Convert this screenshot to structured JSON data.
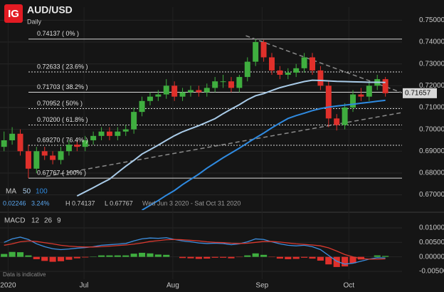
{
  "chart_data": [
    {
      "type": "candlestick",
      "logo": "IG",
      "title": "AUD/USD",
      "subtitle": "Daily",
      "xlim": [
        -0.5,
        49.05
      ],
      "ylim": [
        0.664,
        0.756
      ],
      "xticks": [
        {
          "value": 0.5,
          "label": "2020"
        },
        {
          "value": 9.85,
          "label": "Jul"
        },
        {
          "value": 20.8,
          "label": "Aug"
        },
        {
          "value": 31.8,
          "label": "Sep"
        },
        {
          "value": 42.5,
          "label": "Oct"
        }
      ],
      "yticks": [
        {
          "value": 0.67,
          "label": "0.67000"
        },
        {
          "value": 0.68,
          "label": "0.68000"
        },
        {
          "value": 0.69,
          "label": "0.69000"
        },
        {
          "value": 0.7,
          "label": "0.70000"
        },
        {
          "value": 0.71,
          "label": "0.71000"
        },
        {
          "value": 0.72,
          "label": "0.72000"
        },
        {
          "value": 0.73,
          "label": "0.73000"
        },
        {
          "value": 0.74,
          "label": "0.74000"
        },
        {
          "value": 0.75,
          "label": "0.75000"
        }
      ],
      "up_color": "#3fae3f",
      "down_color": "#e0302b",
      "open": [
        0.692,
        0.695,
        0.698,
        0.69,
        0.682,
        0.69,
        0.688,
        0.686,
        0.69,
        0.693,
        0.692,
        0.695,
        0.697,
        0.699,
        0.697,
        0.699,
        0.7,
        0.708,
        0.713,
        0.715,
        0.716,
        0.72,
        0.715,
        0.717,
        0.718,
        0.717,
        0.719,
        0.722,
        0.722,
        0.719,
        0.724,
        0.731,
        0.74,
        0.733,
        0.727,
        0.725,
        0.726,
        0.728,
        0.733,
        0.727,
        0.72,
        0.705,
        0.702,
        0.71,
        0.716,
        0.715,
        0.72,
        0.723
      ],
      "high": [
        0.699,
        0.701,
        0.7,
        0.693,
        0.692,
        0.692,
        0.69,
        0.692,
        0.695,
        0.695,
        0.697,
        0.699,
        0.701,
        0.701,
        0.701,
        0.702,
        0.71,
        0.715,
        0.717,
        0.718,
        0.723,
        0.722,
        0.719,
        0.72,
        0.72,
        0.721,
        0.724,
        0.725,
        0.724,
        0.725,
        0.733,
        0.74137,
        0.741,
        0.735,
        0.729,
        0.728,
        0.73,
        0.735,
        0.735,
        0.729,
        0.722,
        0.707,
        0.712,
        0.718,
        0.719,
        0.722,
        0.725,
        0.724
      ],
      "low": [
        0.69,
        0.693,
        0.688,
        0.67767,
        0.68,
        0.686,
        0.684,
        0.684,
        0.688,
        0.69,
        0.69,
        0.693,
        0.695,
        0.695,
        0.695,
        0.697,
        0.698,
        0.706,
        0.711,
        0.713,
        0.714,
        0.713,
        0.713,
        0.715,
        0.715,
        0.715,
        0.717,
        0.719,
        0.717,
        0.717,
        0.722,
        0.729,
        0.731,
        0.725,
        0.723,
        0.723,
        0.724,
        0.726,
        0.725,
        0.718,
        0.701,
        0.6995,
        0.7,
        0.708,
        0.713,
        0.713,
        0.718,
        0.715
      ],
      "close": [
        0.695,
        0.698,
        0.69,
        0.682,
        0.69,
        0.688,
        0.686,
        0.69,
        0.693,
        0.692,
        0.695,
        0.697,
        0.699,
        0.697,
        0.699,
        0.7,
        0.708,
        0.713,
        0.715,
        0.716,
        0.72,
        0.715,
        0.717,
        0.718,
        0.717,
        0.719,
        0.722,
        0.722,
        0.719,
        0.724,
        0.731,
        0.74,
        0.733,
        0.727,
        0.725,
        0.726,
        0.728,
        0.733,
        0.727,
        0.72,
        0.705,
        0.702,
        0.71,
        0.716,
        0.715,
        0.72,
        0.723,
        0.71657
      ],
      "legend_title": "MA",
      "series": [
        {
          "name": "50",
          "color": "#a9cbe8",
          "values": [
            null,
            null,
            null,
            null,
            null,
            null,
            null,
            null,
            null,
            0.6695,
            0.6714,
            0.6733,
            0.6753,
            0.6772,
            0.6802,
            0.6831,
            0.6858,
            0.6887,
            0.6907,
            0.6928,
            0.695,
            0.6971,
            0.6989,
            0.7003,
            0.7017,
            0.7033,
            0.7049,
            0.7072,
            0.7093,
            0.7113,
            0.7136,
            0.7154,
            0.7164,
            0.7178,
            0.7191,
            0.7201,
            0.721,
            0.7219,
            0.7225,
            0.7224,
            0.7222,
            0.722,
            0.7219,
            0.7218,
            0.7217,
            0.7216,
            0.7216,
            0.7215
          ]
        },
        {
          "name": "100",
          "color": "#2f8ae0",
          "values": [
            null,
            null,
            null,
            null,
            null,
            null,
            null,
            null,
            null,
            null,
            null,
            null,
            null,
            null,
            null,
            null,
            null,
            0.663,
            0.6652,
            0.6674,
            0.6698,
            0.672,
            0.6747,
            0.6771,
            0.6795,
            0.6822,
            0.6846,
            0.687,
            0.6892,
            0.6914,
            0.6938,
            0.6961,
            0.6983,
            0.7007,
            0.7029,
            0.705,
            0.7063,
            0.7074,
            0.7086,
            0.7095,
            0.7102,
            0.7107,
            0.7111,
            0.7115,
            0.712,
            0.7124,
            0.7129,
            0.7133
          ]
        }
      ],
      "fib": [
        {
          "value": 0.74137,
          "label": "0.74137 ( 0% )",
          "style": "solid"
        },
        {
          "value": 0.72633,
          "label": "0.72633 ( 23.6% )",
          "style": "dotted"
        },
        {
          "value": 0.71703,
          "label": "0.71703 ( 38.2% )",
          "style": "solid"
        },
        {
          "value": 0.70952,
          "label": "0.70952 ( 50% )",
          "style": "dotted"
        },
        {
          "value": 0.702,
          "label": "0.70200 ( 61.8% )",
          "style": "dotted"
        },
        {
          "value": 0.6927,
          "label": "0.69270 ( 76.4% )",
          "style": "dotted"
        },
        {
          "value": 0.67767,
          "label": "0.67767 ( 100% )",
          "style": "solid"
        }
      ],
      "trendlines": [
        {
          "x": [
            29.8,
            49.05
          ],
          "y": [
            0.7429,
            0.7168
          ]
        },
        {
          "x": [
            5.2,
            49.05
          ],
          "y": [
            0.6785,
            0.7077
          ]
        }
      ],
      "info": {
        "change": "0.02246",
        "change_pct": "3.24%",
        "high": "H 0.74137",
        "low": "L 0.67767",
        "range": "Wed Jun 3 2020 - Sat Oct 31 2020"
      },
      "footnote": "Data is indicative"
    },
    {
      "type": "macd",
      "title": "MACD",
      "params": [
        12,
        26,
        9
      ],
      "ylim": [
        -0.0077,
        0.0149
      ],
      "yticks": [
        {
          "value": -0.005,
          "label": "-0.00500"
        },
        {
          "value": 0,
          "label": "0.00000"
        },
        {
          "value": 0.005,
          "label": "0.00500"
        },
        {
          "value": 0.01,
          "label": "0.01000"
        }
      ],
      "macd": {
        "color": "#3d8fe0",
        "values": [
          0.005,
          0.0062,
          0.0068,
          0.006,
          0.0045,
          0.0035,
          0.0028,
          0.0025,
          0.0027,
          0.003,
          0.0032,
          0.0035,
          0.004,
          0.0042,
          0.0044,
          0.0046,
          0.0055,
          0.0062,
          0.0065,
          0.0064,
          0.0066,
          0.006,
          0.0055,
          0.0052,
          0.0048,
          0.0046,
          0.0047,
          0.0046,
          0.0042,
          0.0045,
          0.0052,
          0.0062,
          0.006,
          0.0052,
          0.0045,
          0.004,
          0.0038,
          0.004,
          0.0035,
          0.0025,
          0.0005,
          -0.0015,
          -0.0025,
          -0.0022,
          -0.0015,
          -0.0008,
          -0.0003,
          -0.0004
        ]
      },
      "signal": {
        "color": "#d9392f",
        "values": [
          0.004,
          0.0045,
          0.0052,
          0.0055,
          0.0053,
          0.0049,
          0.0045,
          0.004,
          0.0037,
          0.0035,
          0.0034,
          0.0034,
          0.0035,
          0.0037,
          0.0039,
          0.0041,
          0.0044,
          0.0048,
          0.0053,
          0.0056,
          0.0059,
          0.006,
          0.0059,
          0.0057,
          0.0055,
          0.0052,
          0.005,
          0.0049,
          0.0047,
          0.0046,
          0.0047,
          0.005,
          0.0053,
          0.0053,
          0.0051,
          0.0048,
          0.0045,
          0.0043,
          0.0041,
          0.0038,
          0.0031,
          0.002,
          0.0008,
          0.0,
          -0.0006,
          -0.0008,
          -0.0008,
          -0.0007
        ]
      },
      "histogram": {
        "up_color": "#3fae3f",
        "down_color": "#e0302b",
        "values": [
          0.001,
          0.0017,
          0.0016,
          0.0005,
          -0.0008,
          -0.0014,
          -0.0017,
          -0.0015,
          -0.001,
          -0.0005,
          -0.0002,
          0.0001,
          0.0005,
          0.0005,
          0.0005,
          0.0005,
          0.0011,
          0.0014,
          0.0012,
          0.0008,
          0.0007,
          0.0,
          -0.0004,
          -0.0005,
          -0.0007,
          -0.0006,
          -0.0003,
          -0.0003,
          -0.0005,
          -0.0001,
          0.0005,
          0.0012,
          0.0007,
          -0.0001,
          -0.0006,
          -0.0008,
          -0.0007,
          -0.0003,
          -0.0006,
          -0.0013,
          -0.0026,
          -0.0035,
          -0.0033,
          -0.0022,
          -0.0009,
          0.0,
          0.0005,
          0.0003
        ]
      }
    }
  ]
}
